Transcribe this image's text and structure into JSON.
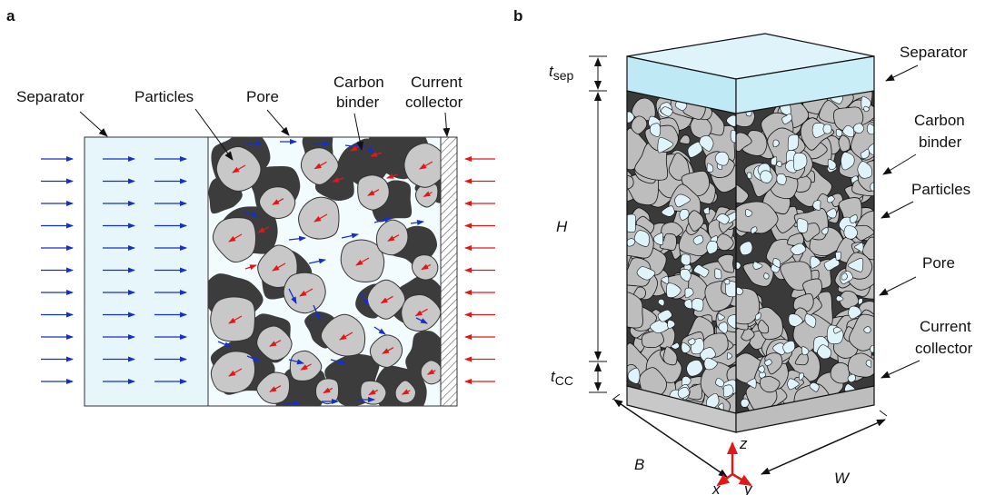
{
  "panel_a": {
    "panel_label": "a",
    "labels": {
      "separator": "Separator",
      "particles": "Particles",
      "pore": "Pore",
      "carbon_line1": "Carbon",
      "carbon_line2": "binder",
      "cc_line1": "Current",
      "cc_line2": "collector"
    },
    "colors": {
      "separator_fill": "#e6f6fb",
      "pore_fill": "#f2fbfe",
      "binder_fill": "#3c3c3c",
      "particle_fill": "#c8c8c8",
      "blue_arrow": "#1530c8",
      "red_arrow": "#e01818"
    }
  },
  "panel_b": {
    "panel_label": "b",
    "labels": {
      "separator": "Separator",
      "carbon_line1": "Carbon",
      "carbon_line2": "binder",
      "particles": "Particles",
      "pore": "Pore",
      "cc_line1": "Current",
      "cc_line2": "collector"
    },
    "dims": {
      "t_sep_main": "t",
      "t_sep_sub": "sep",
      "H": "H",
      "t_cc_main": "t",
      "t_cc_sub": "CC",
      "B": "B",
      "W": "W"
    },
    "axes": {
      "x": "x",
      "y": "y",
      "z": "z"
    },
    "colors": {
      "separator_top": "#dff4fa",
      "separator_side": "#bfe9f5",
      "collector_side": "#c8c8c8",
      "electrode_dark": "#3a3a3a",
      "axis_red": "#e01818"
    }
  }
}
